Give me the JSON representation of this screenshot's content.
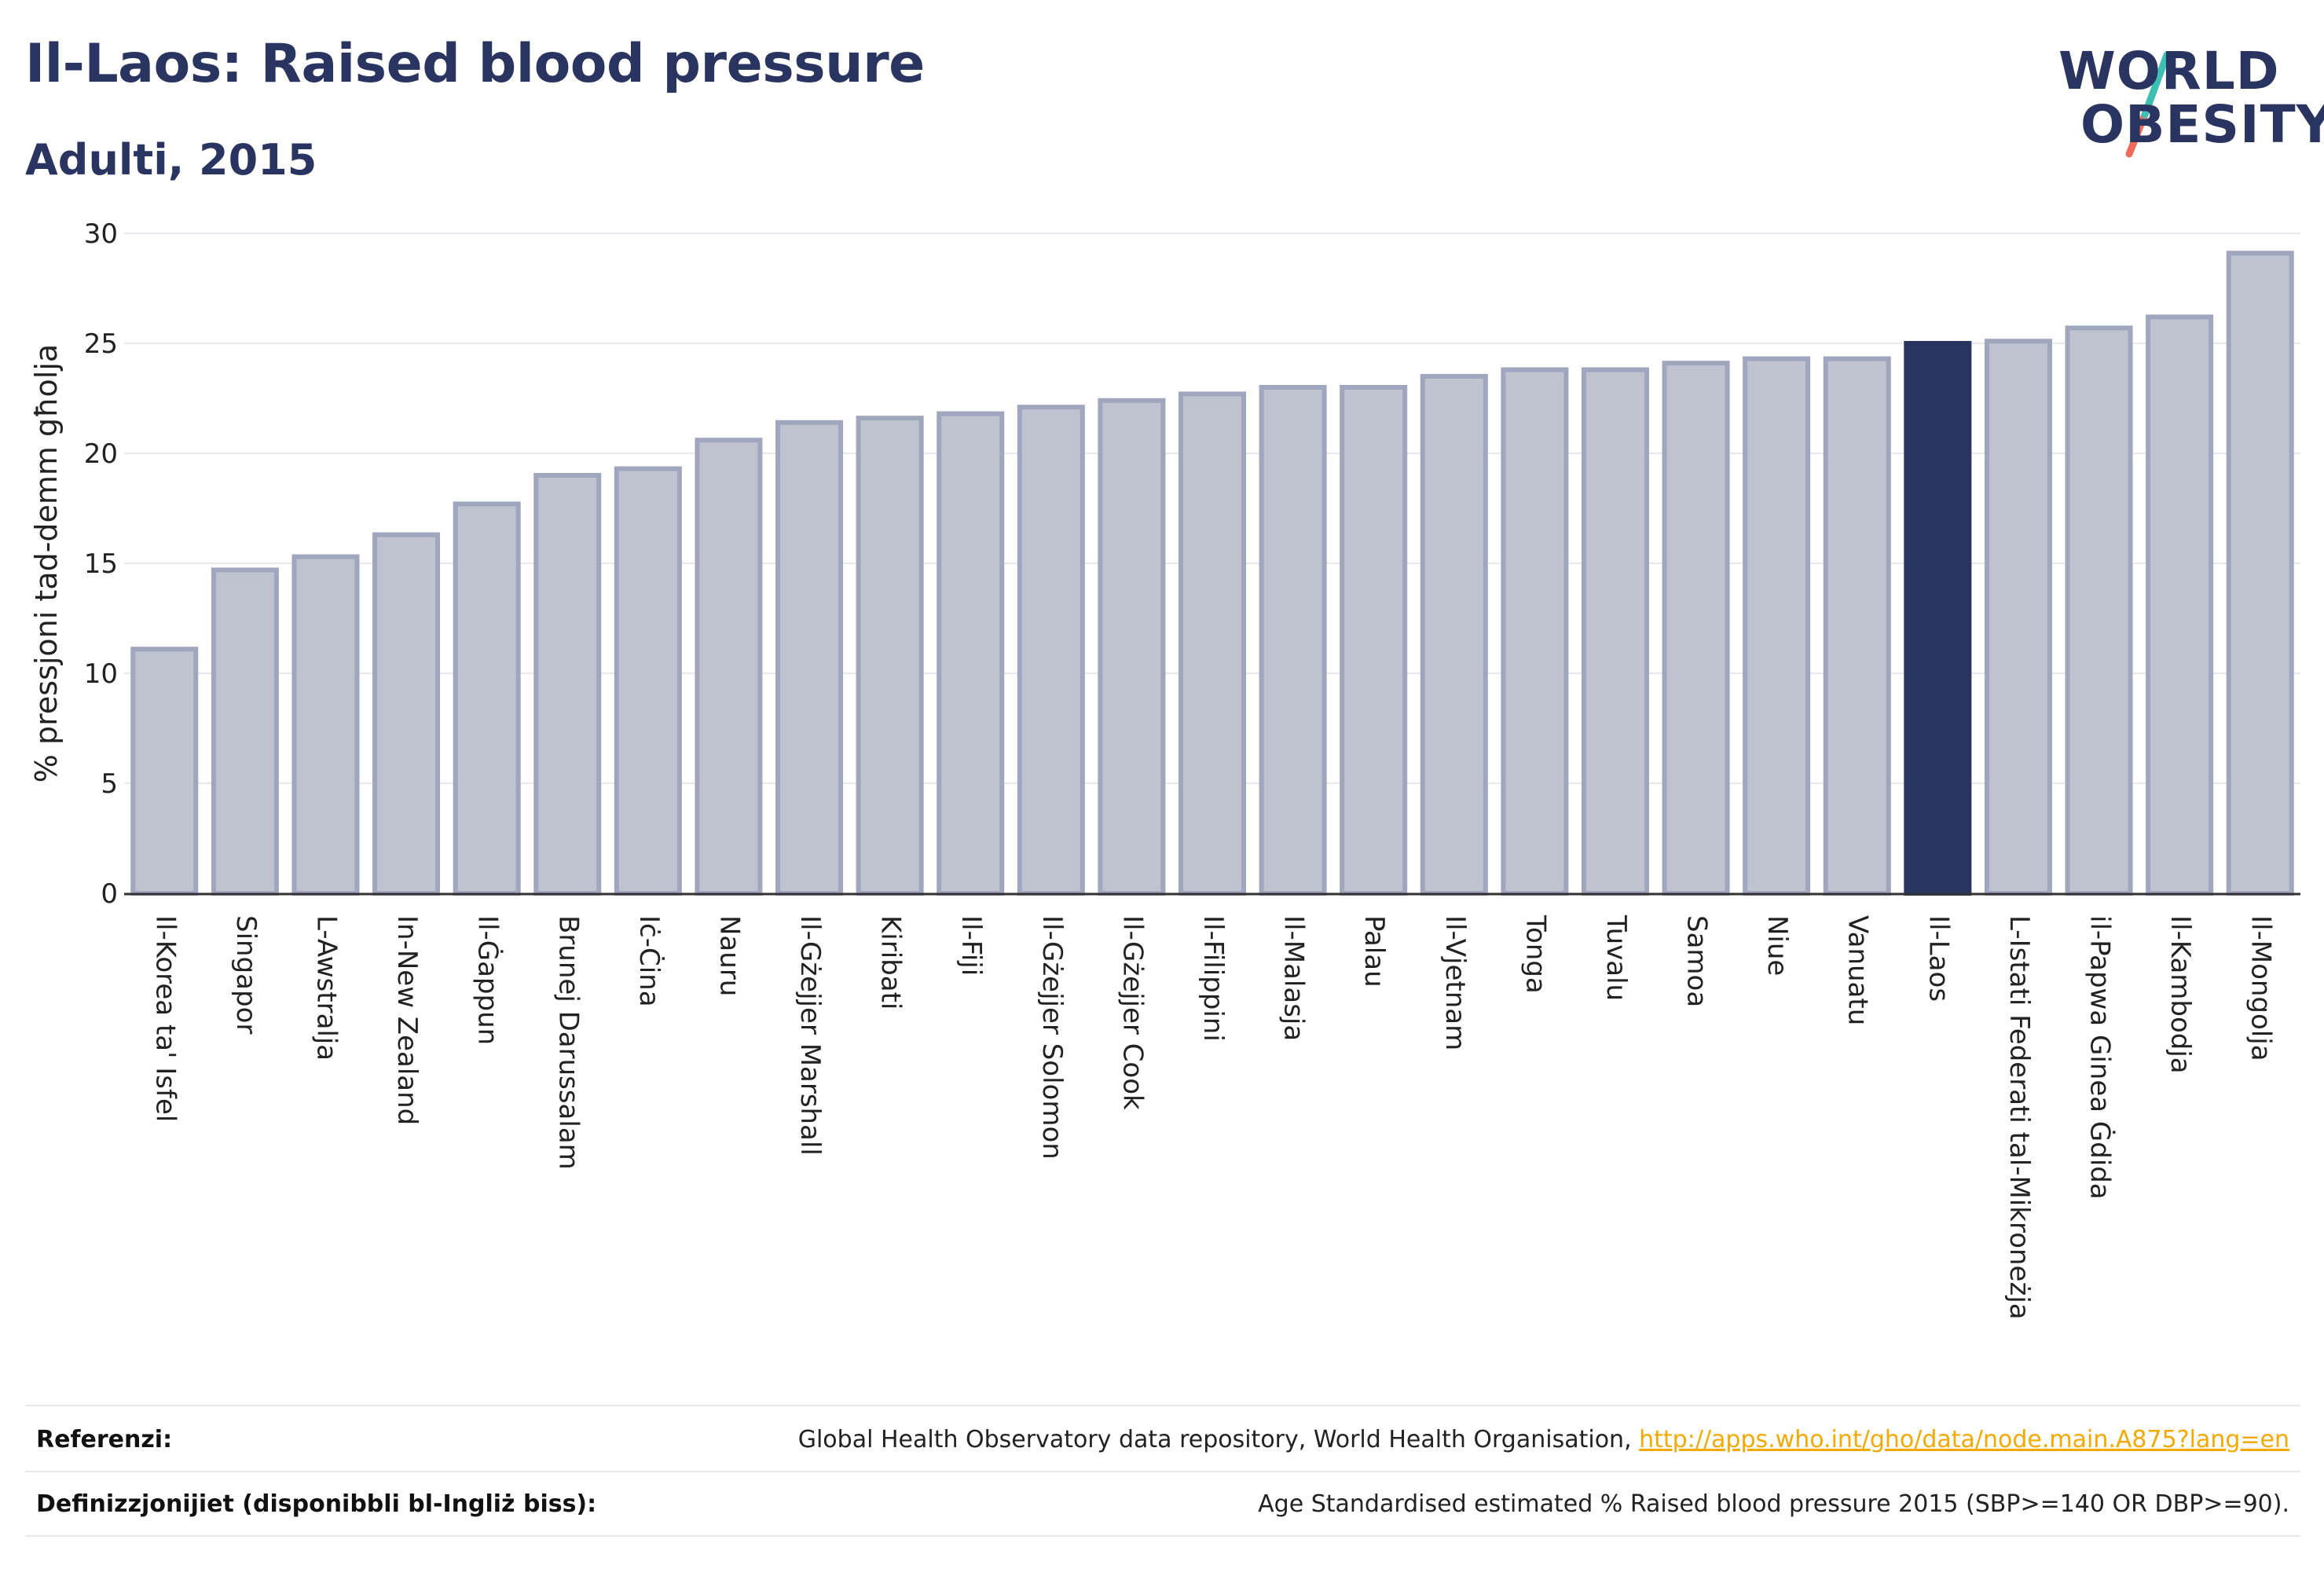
{
  "header": {
    "title": "Il-Laos: Raised blood pressure",
    "subtitle": "Adulti, 2015"
  },
  "logo": {
    "line1": "WORLD",
    "line2": "OBESITY",
    "colors": {
      "text": "#2a3461",
      "slash_teal": "#3fbfb3",
      "slash_coral": "#ef6b5b"
    }
  },
  "chart_data": {
    "type": "bar",
    "ylabel": "% pressjoni tad-demm għolja",
    "ylim": [
      0,
      30
    ],
    "yticks": [
      0,
      5,
      10,
      15,
      20,
      25,
      30
    ],
    "grid": true,
    "highlight": "Il-Laos",
    "colors": {
      "bar": "#bfc3d0",
      "bar_edge": "#a0a6bd",
      "highlight": "#2a3461",
      "grid": "#e7e9ef"
    },
    "categories": [
      "Il-Korea ta' Isfel",
      "Singapor",
      "L-Awstralja",
      "In-New Zealand",
      "Il-Ġappun",
      "Brunej Darussalam",
      "Iċ-Ċina",
      "Nauru",
      "Il-Gżejjer Marshall",
      "Kiribati",
      "Il-Fiji",
      "Il-Gżejjer Solomon",
      "Il-Gżejjer Cook",
      "Il-Filippini",
      "Il-Malasja",
      "Palau",
      "Il-Vjetnam",
      "Tonga",
      "Tuvalu",
      "Samoa",
      "Niue",
      "Vanuatu",
      "Il-Laos",
      "L-Istati Federati tal-Mikroneżja",
      "il-Papwa Ginea Ġdida",
      "Il-Kambodja",
      "Il-Mongolja"
    ],
    "values": [
      11.1,
      14.7,
      15.3,
      16.3,
      17.7,
      19.0,
      19.3,
      20.6,
      21.4,
      21.6,
      21.8,
      22.1,
      22.4,
      22.7,
      23.0,
      23.0,
      23.5,
      23.8,
      23.8,
      24.1,
      24.3,
      24.3,
      25.0,
      25.1,
      25.7,
      26.2,
      29.1
    ]
  },
  "footer": {
    "references_label": "Referenzi:",
    "references_text": "Global Health Observatory data repository, World Health Organisation, ",
    "references_link": "http://apps.who.int/gho/data/node.main.A875?lang=en",
    "definitions_label": "Definizzjonijiet (disponibbli bl-Ingliż biss):",
    "definitions_text": "Age Standardised estimated % Raised blood pressure 2015 (SBP>=140 OR DBP>=90)."
  }
}
